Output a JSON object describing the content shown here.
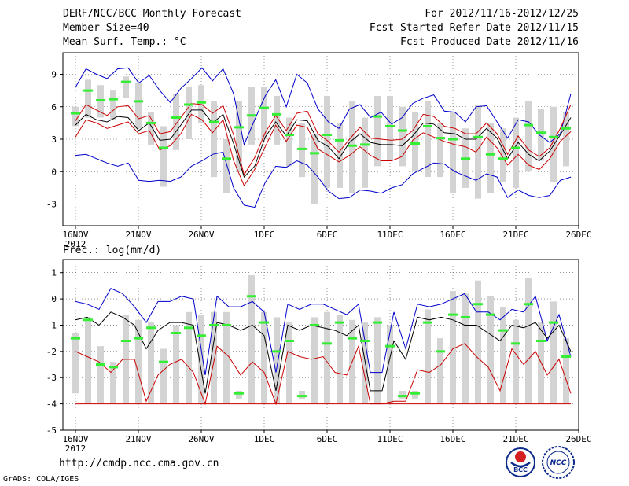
{
  "header": {
    "title": "DERF/NCC/BCC Monthly Forecast",
    "member_size": "Member Size=40",
    "variable_top": "Mean Surf. Temp.: °C",
    "period": "For 2012/11/16-2012/12/25",
    "started": "Fcst Started Refer Date 2012/11/15",
    "produced": "Fcst Produced Date 2012/11/16"
  },
  "footer": {
    "url": "http://cmdp.ncc.cma.gov.cn",
    "grads": "GrADS: COLA/IGES",
    "logo_left": "BCC",
    "logo_right": "NCC"
  },
  "colors": {
    "max_line": "#0000cc",
    "mean_line": "#000000",
    "band_line": "#cc0000",
    "bar": "#d3d3d3",
    "median": "#33ee33",
    "grid": "#555555"
  },
  "chart_data": [
    {
      "type": "ensemble-boxplot",
      "title": "Mean Surf. Temp.: °C",
      "xlabel": "",
      "ylabel": "°C",
      "ylim": [
        -5,
        11
      ],
      "yticks": [
        -3,
        0,
        3,
        6,
        9
      ],
      "xtick_labels": [
        "16NOV",
        "21NOV",
        "26NOV",
        "1DEC",
        "6DEC",
        "11DEC",
        "16DEC",
        "21DEC",
        "26DEC"
      ],
      "xtick_days": [
        1,
        6,
        11,
        16,
        21,
        26,
        31,
        36,
        41
      ],
      "year_label": "2012",
      "days": 40,
      "series": [
        {
          "name": "max",
          "values": [
            7.8,
            9.5,
            9.0,
            8.6,
            9.5,
            9.6,
            8.2,
            8.9,
            7.5,
            6.4,
            7.7,
            8.6,
            9.6,
            8.4,
            9.5,
            7.2,
            2.5,
            4.8,
            7.0,
            8.5,
            6.0,
            9.0,
            8.2,
            5.8,
            4.6,
            4.0,
            5.8,
            6.2,
            5.0,
            5.5,
            4.4,
            5.0,
            6.3,
            6.8,
            7.1,
            5.6,
            5.5,
            4.6,
            6.0,
            6.1,
            4.6,
            3.1,
            4.8,
            4.6,
            3.4,
            2.7,
            3.5,
            7.2
          ]
        },
        {
          "name": "upper",
          "values": [
            4.7,
            6.2,
            5.7,
            5.2,
            6.0,
            6.1,
            4.9,
            5.2,
            3.5,
            3.7,
            5.0,
            6.3,
            6.2,
            5.4,
            6.1,
            3.4,
            -0.3,
            1.3,
            3.6,
            5.2,
            3.8,
            5.4,
            5.6,
            3.5,
            2.8,
            1.8,
            3.0,
            4.1,
            3.1,
            3.0,
            2.9,
            3.0,
            3.8,
            5.3,
            5.1,
            4.2,
            4.0,
            3.5,
            3.5,
            4.5,
            3.5,
            1.6,
            3.3,
            2.0,
            1.4,
            2.2,
            4.0,
            6.2
          ]
        },
        {
          "name": "mean",
          "values": [
            4.3,
            5.3,
            4.8,
            4.6,
            5.1,
            5.0,
            3.8,
            4.5,
            2.9,
            3.0,
            4.3,
            5.7,
            5.7,
            4.5,
            5.3,
            2.6,
            -0.5,
            0.5,
            3.2,
            4.6,
            3.3,
            4.8,
            4.7,
            2.9,
            2.3,
            1.2,
            2.7,
            3.5,
            2.7,
            2.5,
            2.5,
            2.4,
            3.3,
            4.5,
            4.4,
            3.6,
            3.5,
            3.0,
            3.0,
            4.0,
            3.1,
            1.2,
            2.7,
            1.6,
            1.0,
            1.9,
            3.4,
            5.0
          ]
        },
        {
          "name": "lower",
          "values": [
            3.2,
            4.8,
            4.5,
            4.0,
            4.3,
            4.6,
            3.5,
            3.8,
            2.0,
            2.4,
            3.5,
            5.3,
            4.8,
            3.6,
            4.8,
            1.0,
            -1.3,
            0.2,
            2.3,
            4.3,
            2.8,
            4.3,
            4.1,
            2.1,
            1.5,
            0.9,
            1.5,
            2.3,
            1.5,
            1.0,
            1.0,
            1.4,
            2.9,
            3.6,
            3.2,
            2.8,
            2.5,
            2.3,
            1.8,
            3.2,
            2.2,
            0.6,
            1.6,
            0.6,
            0.2,
            1.2,
            2.8,
            3.7
          ]
        },
        {
          "name": "min",
          "values": [
            1.5,
            1.6,
            1.2,
            0.8,
            0.5,
            0.8,
            -0.8,
            -0.9,
            -0.8,
            -0.9,
            -0.5,
            0.5,
            1.0,
            1.6,
            1.8,
            -1.5,
            -3.1,
            -3.3,
            -1.0,
            0.5,
            0.4,
            1.0,
            0.6,
            -0.5,
            -1.8,
            -2.5,
            -2.4,
            -1.7,
            -1.8,
            -2.0,
            -1.5,
            -1.2,
            -0.2,
            0.3,
            0.8,
            0.7,
            0.0,
            -0.4,
            -0.8,
            -0.2,
            -0.5,
            -2.4,
            -1.7,
            -2.2,
            -2.4,
            -2.2,
            -0.8,
            -0.5
          ]
        }
      ],
      "bars": [
        {
          "day": 1,
          "low": 4.2,
          "high": 6.0,
          "median": 5.4
        },
        {
          "day": 2,
          "low": 5.0,
          "high": 8.5,
          "median": 7.5
        },
        {
          "day": 3,
          "low": 5.0,
          "high": 8.0,
          "median": 6.6
        },
        {
          "day": 4,
          "low": 4.8,
          "high": 7.5,
          "median": 6.7
        },
        {
          "day": 5,
          "low": 6.8,
          "high": 8.8,
          "median": 8.3
        },
        {
          "day": 6,
          "low": 4.0,
          "high": 8.2,
          "median": 6.5
        },
        {
          "day": 7,
          "low": 2.5,
          "high": 5.5,
          "median": 4.5
        },
        {
          "day": 8,
          "low": -1.4,
          "high": 4.2,
          "median": 2.2
        },
        {
          "day": 9,
          "low": 2.0,
          "high": 7.2,
          "median": 5.0
        },
        {
          "day": 10,
          "low": 3.0,
          "high": 7.8,
          "median": 6.2
        },
        {
          "day": 11,
          "low": 4.5,
          "high": 8.0,
          "median": 6.4
        },
        {
          "day": 12,
          "low": -0.5,
          "high": 6.5,
          "median": 4.6
        },
        {
          "day": 13,
          "low": -2.0,
          "high": 3.0,
          "median": 1.2
        },
        {
          "day": 14,
          "low": 0.0,
          "high": 6.5,
          "median": 4.1
        },
        {
          "day": 15,
          "low": 2.5,
          "high": 7.8,
          "median": 5.2
        },
        {
          "day": 16,
          "low": 3.0,
          "high": 7.8,
          "median": 5.9
        },
        {
          "day": 17,
          "low": 2.5,
          "high": 7.0,
          "median": 5.3
        },
        {
          "day": 18,
          "low": 0.5,
          "high": 5.0,
          "median": 3.4
        },
        {
          "day": 19,
          "low": -0.5,
          "high": 4.5,
          "median": 2.1
        },
        {
          "day": 20,
          "low": -3.0,
          "high": 3.5,
          "median": 1.7
        },
        {
          "day": 21,
          "low": -1.5,
          "high": 7.0,
          "median": 3.4
        },
        {
          "day": 22,
          "low": -1.5,
          "high": 4.5,
          "median": 2.9
        },
        {
          "day": 23,
          "low": -2.0,
          "high": 6.5,
          "median": 2.4
        },
        {
          "day": 24,
          "low": -1.5,
          "high": 5.0,
          "median": 2.5
        },
        {
          "day": 25,
          "low": 0.5,
          "high": 7.0,
          "median": 5.1
        },
        {
          "day": 26,
          "low": 1.0,
          "high": 7.0,
          "median": 4.2
        },
        {
          "day": 27,
          "low": 0.5,
          "high": 6.0,
          "median": 3.8
        },
        {
          "day": 28,
          "low": 0.0,
          "high": 5.5,
          "median": 2.6
        },
        {
          "day": 29,
          "low": -0.5,
          "high": 6.5,
          "median": 4.2
        },
        {
          "day": 30,
          "low": -0.5,
          "high": 4.5,
          "median": 3.1
        },
        {
          "day": 31,
          "low": -2.0,
          "high": 5.5,
          "median": 3.0
        },
        {
          "day": 32,
          "low": -1.5,
          "high": 4.0,
          "median": 1.2
        },
        {
          "day": 33,
          "low": -2.5,
          "high": 6.2,
          "median": 3.2
        },
        {
          "day": 34,
          "low": -2.0,
          "high": 4.5,
          "median": 1.6
        },
        {
          "day": 35,
          "low": -1.0,
          "high": 4.0,
          "median": 1.2
        },
        {
          "day": 36,
          "low": -1.5,
          "high": 5.0,
          "median": 2.2
        },
        {
          "day": 37,
          "low": 0.0,
          "high": 6.5,
          "median": 4.3
        },
        {
          "day": 38,
          "low": 1.0,
          "high": 5.8,
          "median": 3.6
        },
        {
          "day": 39,
          "low": -1.0,
          "high": 6.0,
          "median": 3.2
        },
        {
          "day": 40,
          "low": 0.5,
          "high": 5.5,
          "median": 4.0
        }
      ]
    },
    {
      "type": "ensemble-boxplot",
      "title": "Prec.: log(mm/d)",
      "xlabel": "",
      "ylabel": "log(mm/d)",
      "ylim": [
        -5,
        1.5
      ],
      "yticks": [
        -5,
        -4,
        -3,
        -2,
        -1,
        0,
        1
      ],
      "xtick_labels": [
        "16NOV",
        "21NOV",
        "26NOV",
        "1DEC",
        "6DEC",
        "11DEC",
        "16DEC",
        "21DEC",
        "26DEC"
      ],
      "xtick_days": [
        1,
        6,
        11,
        16,
        21,
        26,
        31,
        36,
        41
      ],
      "year_label": "2012",
      "days": 40,
      "series": [
        {
          "name": "max",
          "values": [
            -0.1,
            -0.2,
            -0.4,
            0.4,
            0.2,
            -0.3,
            -0.9,
            -0.1,
            -0.1,
            0.1,
            0.0,
            -2.9,
            0.1,
            -0.3,
            -0.3,
            -0.1,
            -0.5,
            -2.8,
            -0.2,
            -0.4,
            -0.2,
            -0.2,
            -0.4,
            -0.6,
            -0.2,
            -2.8,
            -2.8,
            -0.5,
            -1.9,
            -0.2,
            -0.3,
            -0.2,
            0.0,
            0.2,
            -0.5,
            -0.5,
            -0.8,
            -0.4,
            -0.5,
            0.1,
            -1.6,
            -0.6,
            -2.2
          ]
        },
        {
          "name": "mean",
          "values": [
            -0.8,
            -0.7,
            -1.0,
            -0.5,
            -0.7,
            -1.0,
            -1.9,
            -1.2,
            -0.9,
            -0.9,
            -1.0,
            -3.6,
            -0.9,
            -1.0,
            -1.2,
            -1.0,
            -1.4,
            -3.5,
            -1.0,
            -1.2,
            -1.0,
            -1.1,
            -1.2,
            -1.4,
            -1.0,
            -3.5,
            -3.5,
            -1.6,
            -2.3,
            -0.7,
            -0.8,
            -0.7,
            -0.8,
            -1.0,
            -1.0,
            -1.3,
            -1.6,
            -1.0,
            -1.1,
            -0.9,
            -1.5,
            -1.0,
            -2.0
          ]
        },
        {
          "name": "lower",
          "values": [
            -2.0,
            -2.2,
            -2.4,
            -2.8,
            -2.3,
            -2.3,
            -3.9,
            -2.9,
            -2.5,
            -2.3,
            -2.8,
            -4.0,
            -1.8,
            -2.2,
            -2.9,
            -2.4,
            -2.8,
            -4.0,
            -2.0,
            -2.2,
            -2.3,
            -2.2,
            -2.8,
            -2.9,
            -1.8,
            -4.0,
            -4.0,
            -3.9,
            -3.9,
            -2.7,
            -2.8,
            -2.5,
            -1.9,
            -1.7,
            -2.2,
            -2.6,
            -3.5,
            -1.9,
            -2.5,
            -2.0,
            -2.9,
            -2.3,
            -3.6
          ]
        },
        {
          "name": "min",
          "values": [
            -4.0,
            -4.0,
            -4.0,
            -4.0,
            -4.0,
            -4.0,
            -4.0,
            -4.0,
            -4.0,
            -4.0,
            -4.0,
            -4.0,
            -4.0,
            -4.0,
            -4.0,
            -4.0,
            -4.0,
            -4.0,
            -4.0,
            -4.0,
            -4.0,
            -4.0,
            -4.0,
            -4.0,
            -4.0,
            -4.0,
            -4.0,
            -4.0,
            -4.0,
            -4.0,
            -4.0,
            -4.0,
            -4.0,
            -4.0,
            -4.0,
            -4.0,
            -4.0,
            -4.0,
            -4.0,
            -4.0,
            -4.0,
            -4.0,
            -4.0
          ]
        }
      ],
      "bars": [
        {
          "day": 1,
          "low": -3.6,
          "high": -1.3,
          "median": -1.5
        },
        {
          "day": 2,
          "low": -4.0,
          "high": -0.7,
          "median": -0.8
        },
        {
          "day": 3,
          "low": -4.0,
          "high": -1.8,
          "median": -2.5
        },
        {
          "day": 4,
          "low": -4.0,
          "high": -2.4,
          "median": -2.6
        },
        {
          "day": 5,
          "low": -4.0,
          "high": -0.6,
          "median": -1.6
        },
        {
          "day": 6,
          "low": -4.0,
          "high": -0.8,
          "median": -1.5
        },
        {
          "day": 7,
          "low": -4.0,
          "high": -0.9,
          "median": -1.1
        },
        {
          "day": 8,
          "low": -4.0,
          "high": -1.9,
          "median": -2.4
        },
        {
          "day": 9,
          "low": -4.0,
          "high": -1.0,
          "median": -1.3
        },
        {
          "day": 10,
          "low": -4.0,
          "high": -0.5,
          "median": -1.1
        },
        {
          "day": 11,
          "low": -4.0,
          "high": -0.6,
          "median": -1.4
        },
        {
          "day": 12,
          "low": -4.0,
          "high": -0.5,
          "median": -1.0
        },
        {
          "day": 13,
          "low": -4.0,
          "high": -0.5,
          "median": -1.0
        },
        {
          "day": 14,
          "low": -3.8,
          "high": -3.5,
          "median": -3.6
        },
        {
          "day": 15,
          "low": -4.0,
          "high": 0.9,
          "median": 0.1
        },
        {
          "day": 16,
          "low": -4.0,
          "high": -0.5,
          "median": -0.9
        },
        {
          "day": 17,
          "low": -4.0,
          "high": -0.7,
          "median": -2.0
        },
        {
          "day": 18,
          "low": -4.0,
          "high": -0.9,
          "median": -1.6
        },
        {
          "day": 19,
          "low": -3.8,
          "high": -3.5,
          "median": -3.7
        },
        {
          "day": 20,
          "low": -4.0,
          "high": -0.7,
          "median": -1.0
        },
        {
          "day": 21,
          "low": -4.0,
          "high": -0.5,
          "median": -1.7
        },
        {
          "day": 22,
          "low": -4.0,
          "high": -0.6,
          "median": -0.9
        },
        {
          "day": 23,
          "low": -4.0,
          "high": -0.8,
          "median": -1.5
        },
        {
          "day": 24,
          "low": -4.0,
          "high": -0.9,
          "median": -1.6
        },
        {
          "day": 25,
          "low": -4.0,
          "high": -0.7,
          "median": -0.9
        },
        {
          "day": 26,
          "low": -4.0,
          "high": -1.0,
          "median": -1.8
        },
        {
          "day": 27,
          "low": -3.8,
          "high": -3.5,
          "median": -3.7
        },
        {
          "day": 28,
          "low": -3.8,
          "high": -3.5,
          "median": -3.6
        },
        {
          "day": 29,
          "low": -4.0,
          "high": -0.4,
          "median": -0.9
        },
        {
          "day": 30,
          "low": -4.0,
          "high": -1.5,
          "median": -2.0
        },
        {
          "day": 31,
          "low": -4.0,
          "high": 0.3,
          "median": -0.6
        },
        {
          "day": 32,
          "low": -4.0,
          "high": 0.2,
          "median": -0.7
        },
        {
          "day": 33,
          "low": -4.0,
          "high": 0.7,
          "median": -0.2
        },
        {
          "day": 34,
          "low": -4.0,
          "high": 0.1,
          "median": -0.6
        },
        {
          "day": 35,
          "low": -4.0,
          "high": -0.3,
          "median": -1.2
        },
        {
          "day": 36,
          "low": -4.0,
          "high": -0.8,
          "median": -1.7
        },
        {
          "day": 37,
          "low": -4.0,
          "high": 0.8,
          "median": -0.2
        },
        {
          "day": 38,
          "low": -4.0,
          "high": -0.9,
          "median": -1.6
        },
        {
          "day": 39,
          "low": -4.0,
          "high": -0.1,
          "median": -0.9
        },
        {
          "day": 40,
          "low": -4.0,
          "high": -1.5,
          "median": -2.2
        }
      ]
    }
  ]
}
